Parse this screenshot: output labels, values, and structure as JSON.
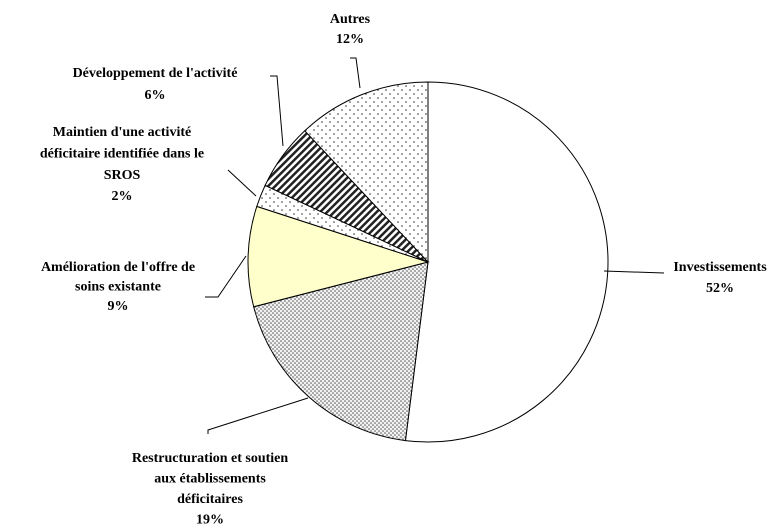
{
  "chart_data": {
    "type": "pie",
    "categories": [
      [
        "Investissements"
      ],
      [
        "Restructuration et soutien",
        "aux établissements",
        "déficitaires"
      ],
      [
        "Amélioration de l'offre de",
        "soins existante"
      ],
      [
        "Maintien d'une activité",
        "déficitaire identifiée dans le",
        "SROS"
      ],
      [
        "Développement de l'activité"
      ],
      [
        "Autres"
      ]
    ],
    "values": [
      52,
      19,
      9,
      2,
      6,
      12
    ],
    "value_labels": [
      "52%",
      "19%",
      "9%",
      "2%",
      "6%",
      "12%"
    ],
    "colors": [
      "#ffffff",
      "#d9d9d9",
      "#ffffcc",
      "#ffffff",
      "#808080",
      "#ffffff"
    ],
    "patterns": [
      "none",
      "dense-dots",
      "none",
      "sparse-dots",
      "hatch",
      "sparse-dots"
    ]
  }
}
